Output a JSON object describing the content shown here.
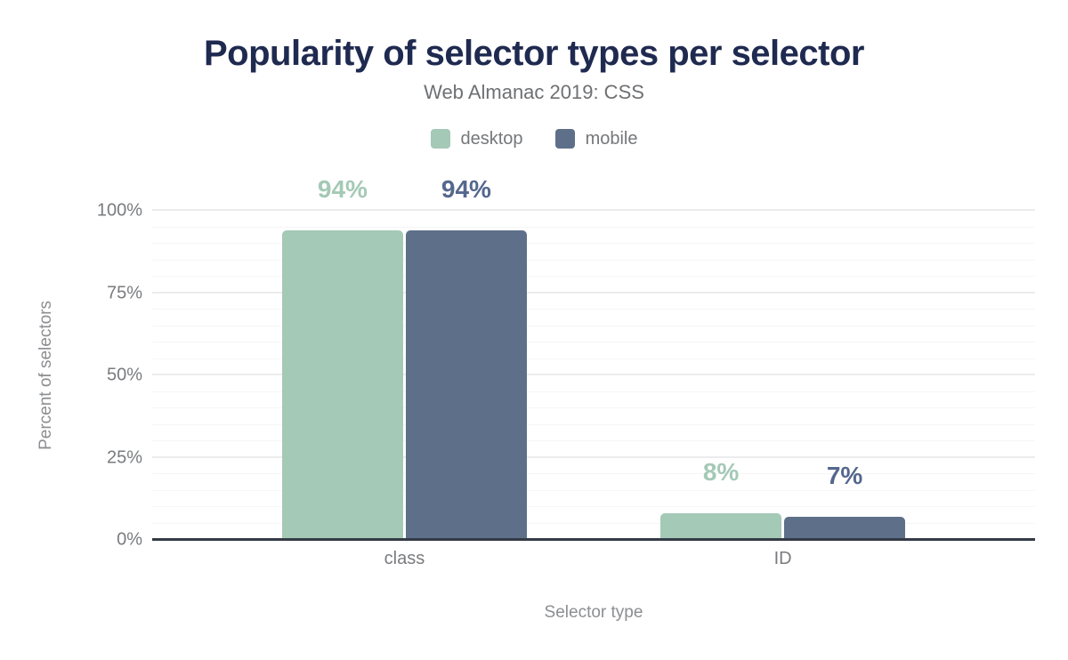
{
  "title": "Popularity of selector types per selector",
  "subtitle": "Web Almanac 2019: CSS",
  "legend": {
    "items": [
      {
        "label": "desktop",
        "color": "#a4c9b6"
      },
      {
        "label": "mobile",
        "color": "#5e7089"
      }
    ]
  },
  "chart_data": {
    "type": "bar",
    "title": "Popularity of selector types per selector",
    "subtitle": "Web Almanac 2019: CSS",
    "categories": [
      "class",
      "ID"
    ],
    "series": [
      {
        "name": "desktop",
        "values": [
          94,
          8
        ],
        "labels": [
          "94%",
          "8%"
        ],
        "color": "#a4c9b6",
        "label_color": "#a4c9b6"
      },
      {
        "name": "mobile",
        "values": [
          94,
          7
        ],
        "labels": [
          "94%",
          "7%"
        ],
        "color": "#5e7089",
        "label_color": "#54678e"
      }
    ],
    "xlabel": "Selector type",
    "ylabel": "Percent of selectors",
    "ylim": [
      0,
      100
    ],
    "yticks": [
      {
        "value": 0,
        "label": "0%"
      },
      {
        "value": 25,
        "label": "25%"
      },
      {
        "value": 50,
        "label": "50%"
      },
      {
        "value": 75,
        "label": "75%"
      },
      {
        "value": 100,
        "label": "100%"
      }
    ],
    "minor_grid_step_pct": 5,
    "grid": "on",
    "legend_position": "top"
  },
  "colors": {
    "title": "#1f2a50",
    "subtitle": "#6e7073",
    "axis_text": "#797b7e",
    "axis_title_text": "#8c8e91",
    "axis_line": "#343b46",
    "gridline_major": "#ebecee",
    "gridline_minor": "#f6f6f7",
    "background": "#ffffff"
  }
}
